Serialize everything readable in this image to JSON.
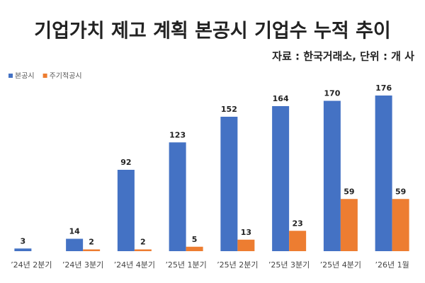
{
  "chart_data": {
    "type": "bar",
    "title": "기업가치 제고 계획 본공시 기업수 누적 추이",
    "subtitle": "자료 : 한국거래소, 단위 : 개 사",
    "categories": [
      "’24년 2분기",
      "’24년 3분기",
      "’24년 4분기",
      "’25년 1분기",
      "’25년 2분기",
      "’25년 3분기",
      "’25년 4분기",
      "’26년 1월"
    ],
    "series": [
      {
        "name": "본공시",
        "color": "#4472c4",
        "values": [
          3,
          14,
          92,
          123,
          152,
          164,
          170,
          176
        ]
      },
      {
        "name": "주기적공시",
        "color": "#ed7d31",
        "values": [
          null,
          2,
          2,
          5,
          13,
          23,
          59,
          59
        ]
      }
    ],
    "ylim": [
      0,
      190
    ],
    "legend": "top-left"
  }
}
